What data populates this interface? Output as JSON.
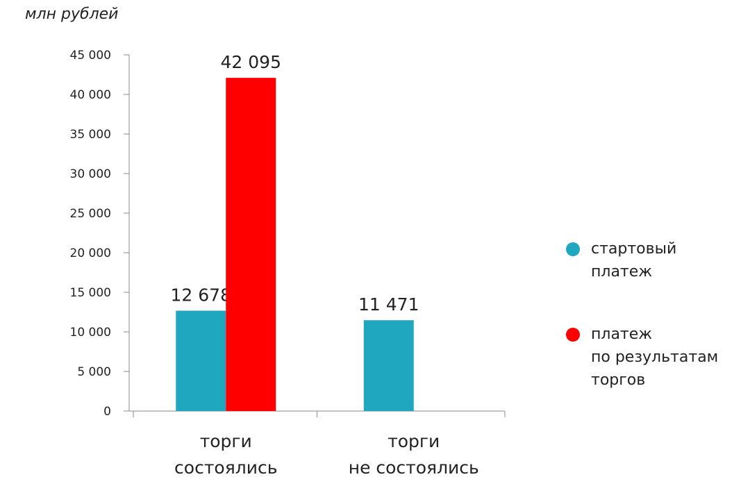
{
  "unit_label": "млн рублей",
  "chart_data": {
    "type": "bar",
    "title": "",
    "xlabel": "",
    "ylabel": "млн рублей",
    "ylim": [
      0,
      45000
    ],
    "ytick_values": [
      0,
      5000,
      10000,
      15000,
      20000,
      25000,
      30000,
      35000,
      40000,
      45000
    ],
    "yticks": [
      "0",
      "5 000",
      "10 000",
      "15 000",
      "20 000",
      "25 000",
      "30 000",
      "35 000",
      "40 000",
      "45 000"
    ],
    "categories": [
      [
        "торги",
        "состоялись"
      ],
      [
        "торги",
        "не состоялись"
      ]
    ],
    "series": [
      {
        "name": "стартовый платеж",
        "legend_lines": [
          "стартовый",
          "платеж"
        ],
        "color": "#1fa7c0",
        "values": [
          12678,
          11471
        ],
        "labels": [
          "12 678",
          "11 471"
        ]
      },
      {
        "name": "платеж по результатам торгов",
        "legend_lines": [
          "платеж",
          "по результатам",
          "торгов"
        ],
        "color": "#ff0000",
        "values": [
          42095,
          null
        ],
        "labels": [
          "42 095",
          null
        ]
      }
    ],
    "grid": false,
    "legend_position": "right"
  }
}
